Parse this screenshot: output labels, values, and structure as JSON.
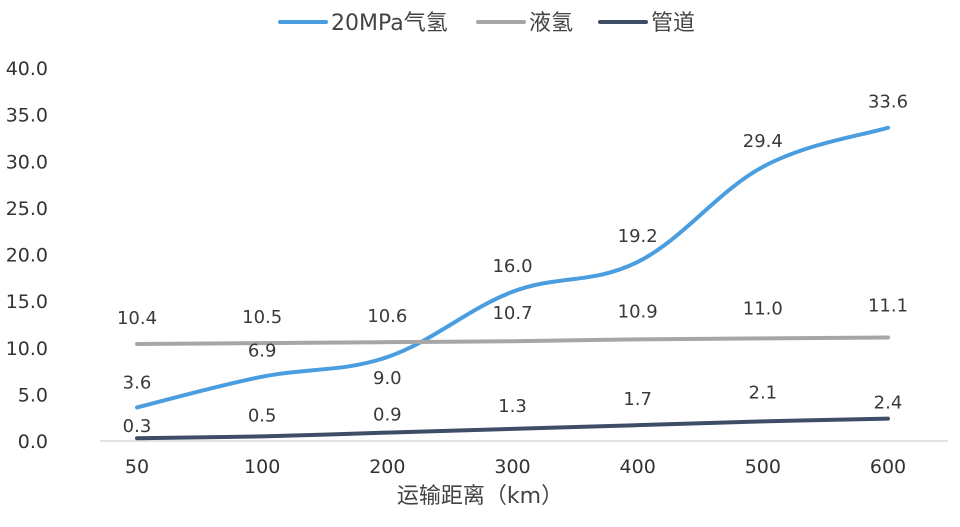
{
  "chart_data": {
    "type": "line",
    "categories": [
      "50",
      "100",
      "200",
      "300",
      "400",
      "500",
      "600"
    ],
    "series": [
      {
        "name": "20MPa气氢",
        "color": "#4a9ee0",
        "values": [
          3.6,
          6.9,
          9.0,
          16.0,
          19.2,
          29.4,
          33.6
        ],
        "labels": [
          "3.6",
          "6.9",
          "9.0",
          "16.0",
          "19.2",
          "29.4",
          "33.6"
        ]
      },
      {
        "name": "液氢",
        "color": "#a6a6a6",
        "values": [
          10.4,
          10.5,
          10.6,
          10.7,
          10.9,
          11.0,
          11.1
        ],
        "labels": [
          "10.4",
          "10.5",
          "10.6",
          "10.7",
          "10.9",
          "11.0",
          "11.1"
        ]
      },
      {
        "name": "管道",
        "color": "#3e4d66",
        "values": [
          0.3,
          0.5,
          0.9,
          1.3,
          1.7,
          2.1,
          2.4
        ],
        "labels": [
          "0.3",
          "0.5",
          "0.9",
          "1.3",
          "1.7",
          "2.1",
          "2.4"
        ]
      }
    ],
    "xlabel": "运输距离（km）",
    "ylabel": "",
    "ylim": [
      0,
      40
    ],
    "yticks": [
      "0.0",
      "5.0",
      "10.0",
      "15.0",
      "20.0",
      "25.0",
      "30.0",
      "35.0",
      "40.0"
    ],
    "grid": false,
    "legend": "top"
  }
}
